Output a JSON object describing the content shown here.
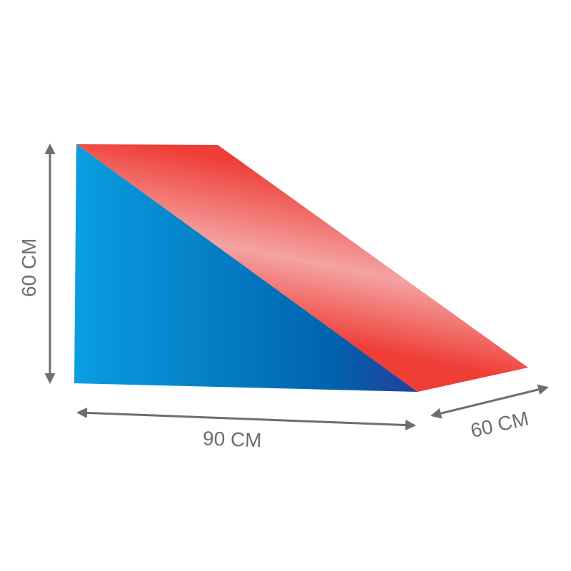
{
  "dimensions": {
    "height_label": "60 CM",
    "length_label": "90 CM",
    "depth_label": "60 CM"
  },
  "colors": {
    "side_face": [
      "#0a9ee0",
      "#0067b1",
      "#1f3f93"
    ],
    "slope_face": [
      "#ef3e36",
      "#f4a0a0",
      "#ef3e36"
    ],
    "dimension_lines": "#6d6e71"
  }
}
